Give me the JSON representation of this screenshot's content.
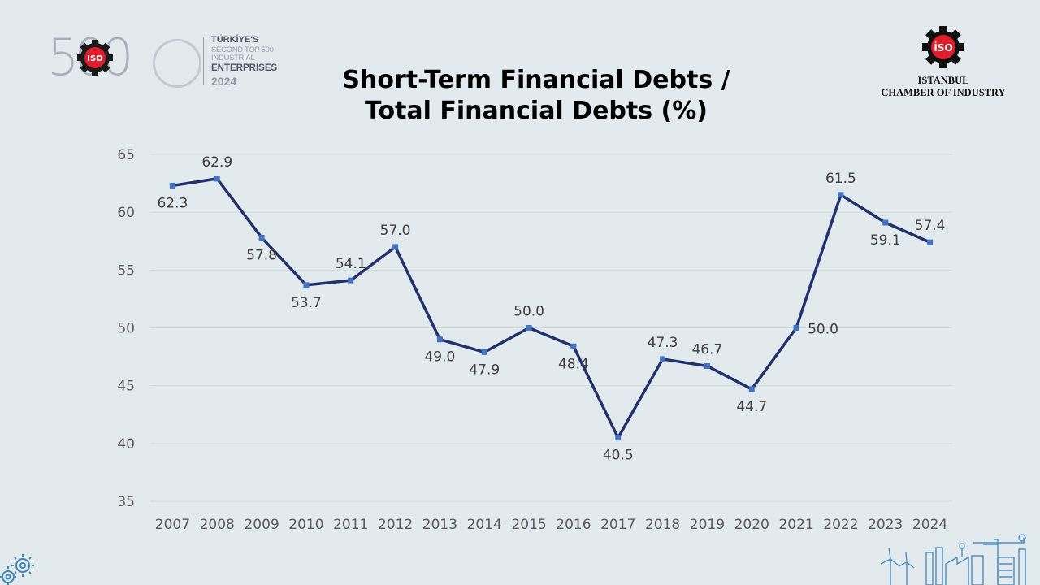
{
  "logos": {
    "left": {
      "number": "500",
      "badge_text": "İSO",
      "line1": "TÜRKİYE'S",
      "line2": "SECOND TOP 500 INDUSTRIAL",
      "line3": "ENTERPRISES",
      "line4": "2024"
    },
    "right": {
      "badge_text": "İSO",
      "name_line1": "ISTANBUL",
      "name_line2": "CHAMBER OF INDUSTRY"
    }
  },
  "chart_data": {
    "type": "line",
    "title_line1": "Short-Term Financial Debts /",
    "title_line2": "Total Financial Debts (%)",
    "categories": [
      "2007",
      "2008",
      "2009",
      "2010",
      "2011",
      "2012",
      "2013",
      "2014",
      "2015",
      "2016",
      "2017",
      "2018",
      "2019",
      "2020",
      "2021",
      "2022",
      "2023",
      "2024"
    ],
    "series": [
      {
        "values": [
          62.3,
          62.9,
          57.8,
          53.7,
          54.1,
          57.0,
          49.0,
          47.9,
          50.0,
          48.4,
          40.5,
          47.3,
          46.7,
          44.7,
          50.0,
          61.5,
          59.1,
          57.4
        ],
        "labels": [
          "62.3",
          "62.9",
          "57.8",
          "53.7",
          "54.1",
          "57.0",
          "49.0",
          "47.9",
          "50.0",
          "48.4",
          "40.5",
          "47.3",
          "46.7",
          "44.7",
          "50.0",
          "61.5",
          "59.1",
          "57.4"
        ],
        "label_pos": [
          "below",
          "above",
          "below",
          "below",
          "above",
          "above",
          "below",
          "below",
          "above",
          "below",
          "below",
          "above",
          "above",
          "below",
          "right",
          "above",
          "below",
          "above"
        ]
      }
    ],
    "yticks": [
      35,
      40,
      45,
      50,
      55,
      60,
      65
    ],
    "ylim": [
      35,
      65
    ],
    "grid": true,
    "legend": "none",
    "colors": {
      "line": "#22316b",
      "marker": "#4472c4",
      "grid": "#d3dadf"
    }
  }
}
